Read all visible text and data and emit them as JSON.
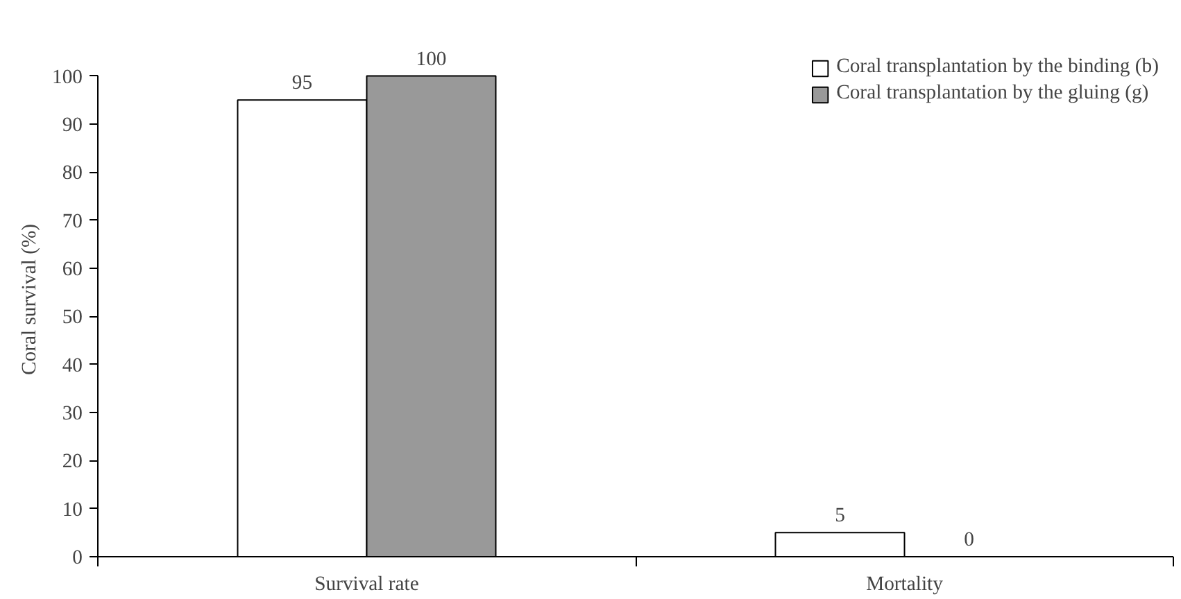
{
  "chart_data": {
    "type": "bar",
    "ylabel": "Coral survival (%)",
    "categories": [
      "Survival rate",
      "Mortality"
    ],
    "series": [
      {
        "name": "Coral transplantation by the binding (b)",
        "color": "#ffffff",
        "values": [
          95,
          5
        ]
      },
      {
        "name": "Coral transplantation by the gluing (g)",
        "color": "#999999",
        "values": [
          100,
          0
        ]
      }
    ],
    "ylim": [
      0,
      100
    ],
    "yticks": [
      0,
      10,
      20,
      30,
      40,
      50,
      60,
      70,
      80,
      90,
      100
    ],
    "data_labels": true,
    "legend": "top right",
    "grid": false
  }
}
